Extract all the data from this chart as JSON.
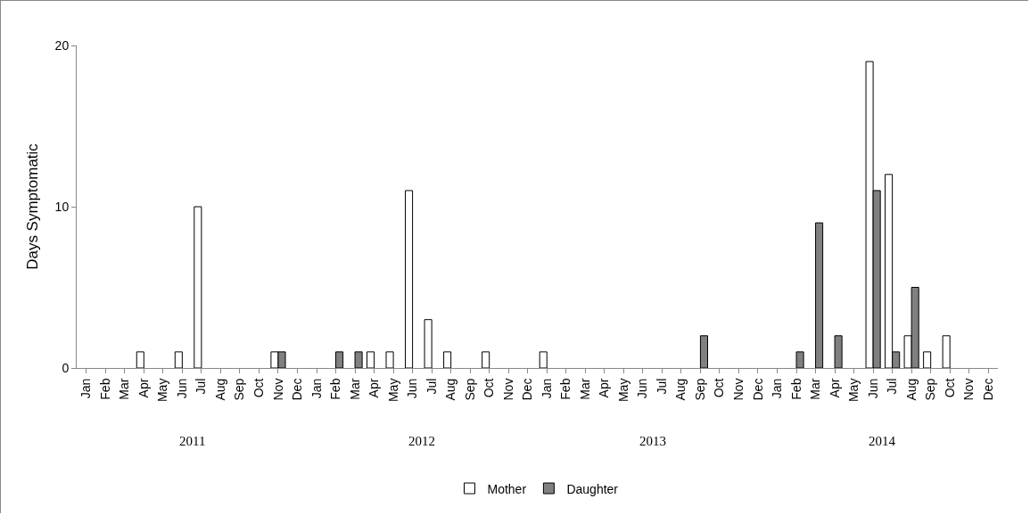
{
  "chart_data": {
    "type": "bar",
    "ylabel": "Days Symptomatic",
    "categories": [
      "Jan",
      "Feb",
      "Mar",
      "Apr",
      "May",
      "Jun",
      "Jul",
      "Aug",
      "Sep",
      "Oct",
      "Nov",
      "Dec",
      "Jan",
      "Feb",
      "Mar",
      "Apr",
      "May",
      "Jun",
      "Jul",
      "Aug",
      "Sep",
      "Oct",
      "Nov",
      "Dec",
      "Jan",
      "Feb",
      "Mar",
      "Apr",
      "May",
      "Jun",
      "Jul",
      "Aug",
      "Sep",
      "Oct",
      "Nov",
      "Dec",
      "Jan",
      "Feb",
      "Mar",
      "Apr",
      "May",
      "Jun",
      "Jul",
      "Aug",
      "Sep",
      "Oct",
      "Nov",
      "Dec"
    ],
    "series": [
      {
        "name": "Mother",
        "color": "#ffffff",
        "values": [
          0,
          0,
          0,
          1,
          0,
          1,
          10,
          0,
          0,
          0,
          1,
          0,
          0,
          0,
          0,
          1,
          1,
          11,
          3,
          1,
          0,
          1,
          0,
          0,
          1,
          0,
          0,
          0,
          0,
          0,
          0,
          0,
          0,
          0,
          0,
          0,
          0,
          0,
          0,
          0,
          0,
          19,
          12,
          2,
          1,
          2,
          0,
          0
        ]
      },
      {
        "name": "Daughter",
        "color": "#808080",
        "values": [
          0,
          0,
          0,
          0,
          0,
          0,
          0,
          0,
          0,
          0,
          1,
          0,
          0,
          1,
          1,
          0,
          0,
          0,
          0,
          0,
          0,
          0,
          0,
          0,
          0,
          0,
          0,
          0,
          0,
          0,
          0,
          0,
          2,
          0,
          0,
          0,
          0,
          1,
          9,
          2,
          0,
          11,
          1,
          5,
          0,
          0,
          0,
          0
        ]
      }
    ],
    "annotations": [
      "2011",
      "2012",
      "2013",
      "2014"
    ],
    "ylim": [
      0,
      20
    ],
    "yticks": [
      0,
      10,
      20
    ],
    "grid": false,
    "legend": "bottom"
  }
}
